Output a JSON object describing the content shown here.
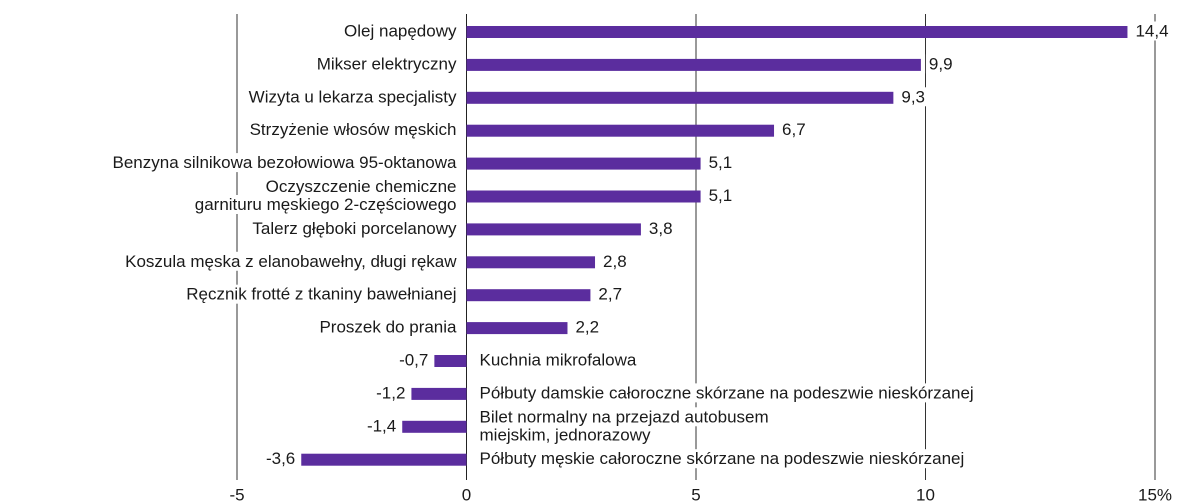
{
  "chart_data": {
    "type": "bar",
    "orientation": "horizontal",
    "categories": [
      "Olej napędowy",
      "Mikser elektryczny",
      "Wizyta u lekarza specjalisty",
      "Strzyżenie włosów męskich",
      "Benzyna silnikowa bezołowiowa 95-oktanowa",
      [
        "Oczyszczenie chemiczne",
        "garnituru męskiego 2-częściowego"
      ],
      "Talerz głęboki porcelanowy",
      "Koszula męska z elanobawełny, długi rękaw",
      "Ręcznik frotté z tkaniny bawełnianej",
      "Proszek do prania",
      "Kuchnia mikrofalowa",
      "Półbuty damskie całoroczne skórzane na podeszwie nieskórzanej",
      [
        "Bilet normalny na przejazd autobusem",
        "miejskim, jednorazowy"
      ],
      "Półbuty męskie całoroczne skórzane na podeszwie nieskórzanej"
    ],
    "values": [
      14.4,
      9.9,
      9.3,
      6.7,
      5.1,
      5.1,
      3.8,
      2.8,
      2.7,
      2.2,
      -0.7,
      -1.2,
      -1.4,
      -3.6
    ],
    "value_labels": [
      "14,4",
      "9,9",
      "9,3",
      "6,7",
      "5,1",
      "5,1",
      "3,8",
      "2,8",
      "2,7",
      "2,2",
      "-0,7",
      "-1,2",
      "-1,4",
      "-3,6"
    ],
    "color": "#5b2d9e",
    "xlim": [
      -5,
      15
    ],
    "xticks": [
      -5,
      0,
      5,
      10,
      {
        "value": 15,
        "label": "15%"
      }
    ],
    "grid": true
  }
}
